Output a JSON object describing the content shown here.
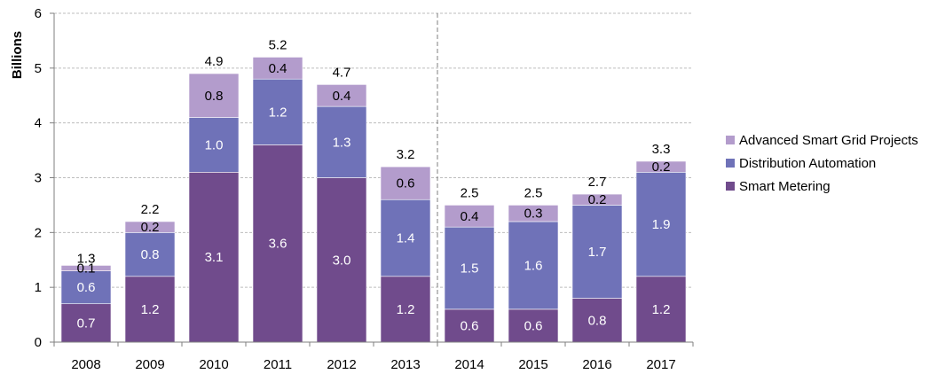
{
  "chart_data": {
    "type": "bar",
    "stacked": true,
    "ylabel": "Billions",
    "ylim": [
      0,
      6
    ],
    "yticks": [
      0,
      1,
      2,
      3,
      4,
      5,
      6
    ],
    "categories": [
      "2008",
      "2009",
      "2010",
      "2011",
      "2012",
      "2013",
      "2014",
      "2015",
      "2016",
      "2017"
    ],
    "series": [
      {
        "name": "Smart Metering",
        "color": "#704b8c",
        "values": [
          0.7,
          1.2,
          3.1,
          3.6,
          3.0,
          1.2,
          0.6,
          0.6,
          0.8,
          1.2
        ]
      },
      {
        "name": "Distribution Automation",
        "color": "#6f72b8",
        "values": [
          0.6,
          0.8,
          1.0,
          1.2,
          1.3,
          1.4,
          1.5,
          1.6,
          1.7,
          1.9
        ]
      },
      {
        "name": "Advanced Smart Grid Projects",
        "color": "#b39ccc",
        "values": [
          0.1,
          0.2,
          0.8,
          0.4,
          0.4,
          0.6,
          0.4,
          0.3,
          0.2,
          0.2
        ]
      }
    ],
    "totals": [
      1.3,
      2.2,
      4.9,
      5.2,
      4.7,
      3.2,
      2.5,
      2.5,
      2.7,
      3.3
    ],
    "segment_labels": [
      [
        "0.7",
        "1.2",
        "3.1",
        "3.6",
        "3.0",
        "1.2",
        "0.6",
        "0.6",
        "0.8",
        "1.2"
      ],
      [
        "0.6",
        "0.8",
        "1.0",
        "1.2",
        "1.3",
        "1.4",
        "1.5",
        "1.6",
        "1.7",
        "1.9"
      ],
      [
        "0.1",
        "0.2",
        "0.8",
        "0.4",
        "0.4",
        "0.6",
        "0.4",
        "0.3",
        "0.2",
        "0.2"
      ]
    ],
    "total_labels": [
      "1.3",
      "2.2",
      "4.9",
      "5.2",
      "4.7",
      "3.2",
      "2.5",
      "2.5",
      "2.7",
      "3.3"
    ],
    "divider_after_category": "2013",
    "grid": true,
    "legend_position": "right",
    "legend_order": [
      "Advanced Smart Grid Projects",
      "Distribution Automation",
      "Smart Metering"
    ]
  }
}
